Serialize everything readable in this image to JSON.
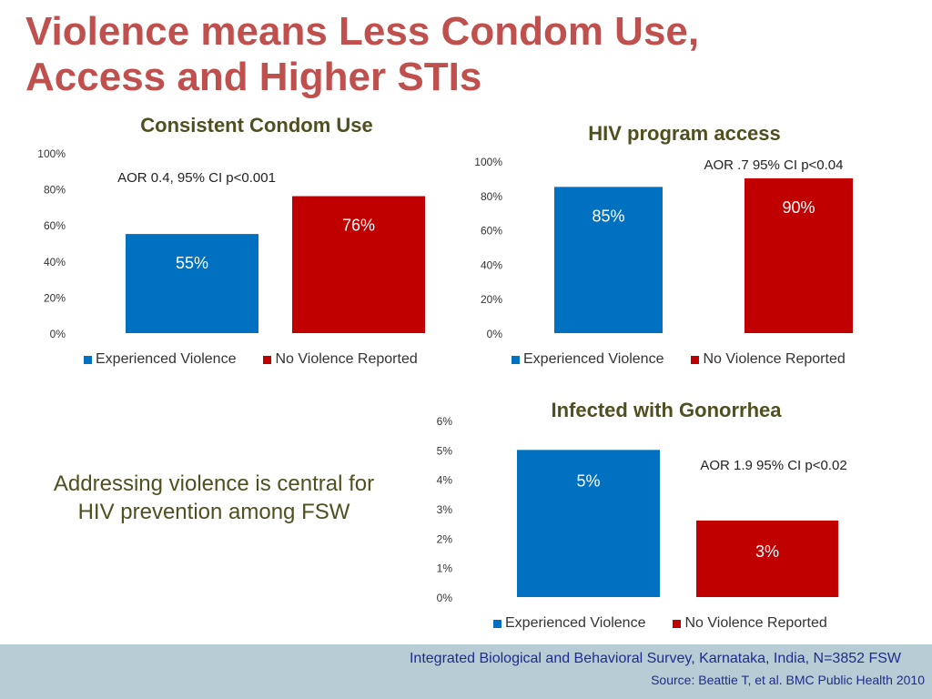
{
  "slide": {
    "title_line1": "Violence means Less Condom Use,",
    "title_line2": "Access and Higher STIs",
    "message": "Addressing violence is central for HIV prevention among FSW",
    "footer_survey": "Integrated Biological and Behavioral Survey, Karnataka, India, N=3852 FSW",
    "footer_source": "Source: Beattie T, et al.  BMC Public Health 2010"
  },
  "colors": {
    "title": "#c0504d",
    "chart_title": "#4f4f20",
    "message": "#4f4f20",
    "experienced_violence": "#0070c0",
    "no_violence": "#c00000",
    "bar_label": "#ffffff",
    "footer_bg": "#b8ccd6",
    "footer_text": "#1f2d8a"
  },
  "chart_data": [
    {
      "type": "bar",
      "title": "Consistent Condom Use",
      "annotation": "AOR 0.4, 95% CI p<0.001",
      "categories": [
        "Experienced Violence",
        "No Violence Reported"
      ],
      "values": [
        55,
        76
      ],
      "value_labels": [
        "55%",
        "76%"
      ],
      "ylim": [
        0,
        100
      ],
      "yticks": [
        "0%",
        "20%",
        "40%",
        "60%",
        "80%",
        "100%"
      ],
      "gridlines": false,
      "legend_position": "bottom"
    },
    {
      "type": "bar",
      "title": "HIV program access",
      "annotation": "AOR .7  95% CI p<0.04",
      "categories": [
        "Experienced Violence",
        "No Violence Reported"
      ],
      "values": [
        85,
        90
      ],
      "value_labels": [
        "85%",
        "90%"
      ],
      "ylim": [
        0,
        100
      ],
      "yticks": [
        "0%",
        "20%",
        "40%",
        "60%",
        "80%",
        "100%"
      ],
      "gridlines": false,
      "legend_position": "bottom"
    },
    {
      "type": "bar",
      "title": "Infected with Gonorrhea",
      "annotation": "AOR 1.9  95% CI p<0.02",
      "categories": [
        "Experienced Violence",
        "No Violence Reported"
      ],
      "values": [
        5,
        2.6
      ],
      "value_labels": [
        "5%",
        "3%"
      ],
      "ylim": [
        0,
        6
      ],
      "yticks": [
        "0%",
        "1%",
        "2%",
        "3%",
        "4%",
        "5%",
        "6%"
      ],
      "gridlines": false,
      "legend_position": "bottom"
    }
  ]
}
